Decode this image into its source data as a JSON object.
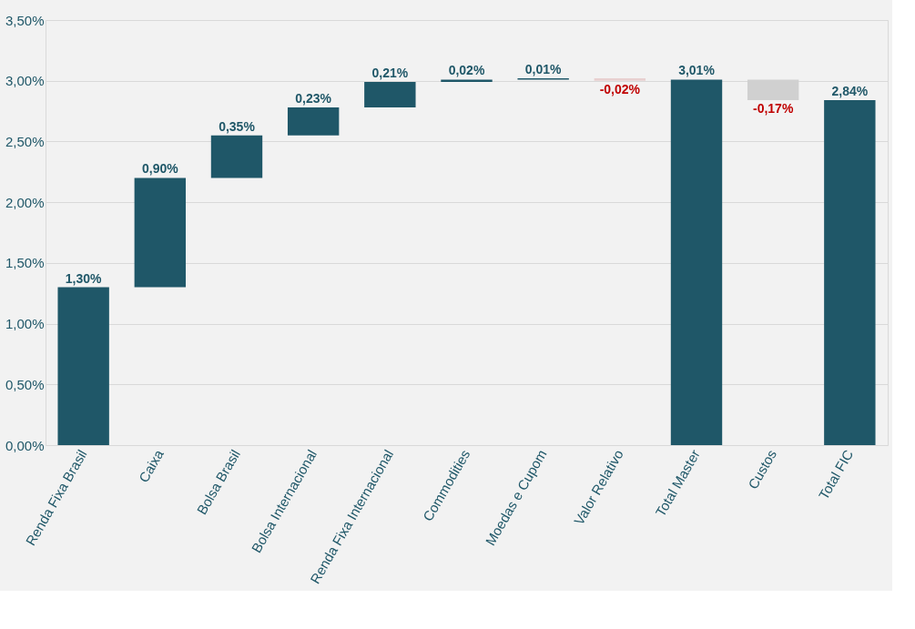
{
  "chart_data": {
    "type": "bar",
    "categories": [
      "Renda Fixa Brasil",
      "Caixa",
      "Bolsa Brasil",
      "Bolsa Internacional",
      "Renda Fixa Internacional",
      "Commodities",
      "Moedas e Cupom",
      "Valor Relativo",
      "Total Master",
      "Custos",
      "Total FIC"
    ],
    "values": [
      1.3,
      0.9,
      0.35,
      0.23,
      0.21,
      0.02,
      0.01,
      -0.02,
      3.01,
      -0.17,
      2.84
    ],
    "base": [
      0,
      1.3,
      2.2,
      2.55,
      2.78,
      2.99,
      3.01,
      3.02,
      0,
      3.01,
      0
    ],
    "colors": [
      "#1f5768",
      "#1f5768",
      "#1f5768",
      "#1f5768",
      "#1f5768",
      "#1f5768",
      "#1f5768",
      "#e8d0d0",
      "#1f5768",
      "#d0d0d0",
      "#1f5768"
    ],
    "value_labels": [
      "1,30%",
      "0,90%",
      "0,35%",
      "0,23%",
      "0,21%",
      "0,02%",
      "0,01%",
      "-0,02%",
      "3,01%",
      "-0,17%",
      "2,84%"
    ],
    "ylim": [
      0,
      3.5
    ],
    "yticks": [
      {
        "value": 0,
        "label": "0,00%"
      },
      {
        "value": 0.5,
        "label": "0,50%"
      },
      {
        "value": 1,
        "label": "1,00%"
      },
      {
        "value": 1.5,
        "label": "1,50%"
      },
      {
        "value": 2,
        "label": "2,00%"
      },
      {
        "value": 2.5,
        "label": "2,50%"
      },
      {
        "value": 3,
        "label": "3,00%"
      },
      {
        "value": 3.5,
        "label": "3,50%"
      }
    ],
    "grid": "y"
  }
}
